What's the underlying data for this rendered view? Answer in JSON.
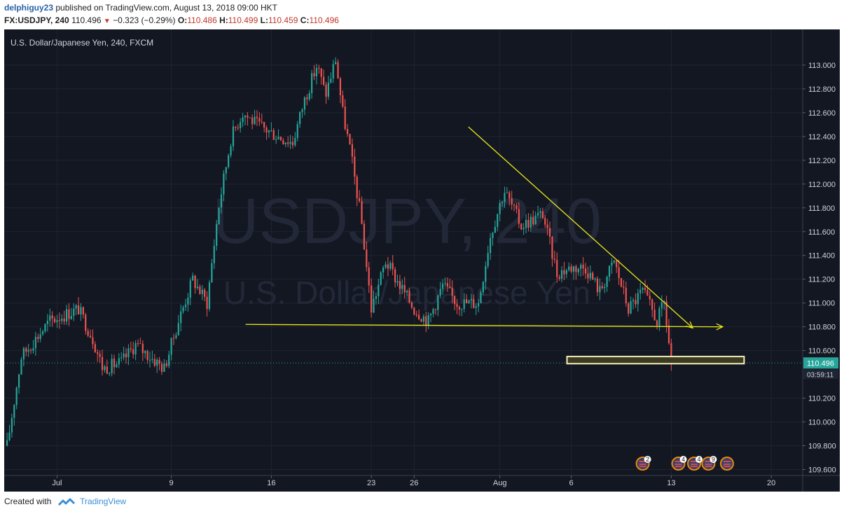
{
  "header": {
    "username": "delphiguy23",
    "published_text": " published on TradingView.com, August 13, 2018 09:00 HKT",
    "symbol": "FX:USDJPY, 240",
    "price": "110.496",
    "change_arrow": "▼",
    "change": "−0.323 (−0.29%)",
    "o_label": "O:",
    "o_value": "110.486",
    "h_label": "H:",
    "h_value": "110.499",
    "l_label": "L:",
    "l_value": "110.459",
    "c_label": "C:",
    "c_value": "110.496"
  },
  "footer": {
    "created_with": "Created with",
    "brand": "TradingView"
  },
  "chart_data": {
    "type": "candlestick",
    "title": "U.S. Dollar/Japanese Yen, 240, FXCM",
    "watermark_symbol": "USDJPY, 240",
    "watermark_name": "U.S. Dollar/Japanese Yen",
    "ylim": [
      109.55,
      113.3
    ],
    "y_ticks": [
      "113.000",
      "112.800",
      "112.600",
      "112.400",
      "112.200",
      "112.000",
      "111.800",
      "111.600",
      "111.400",
      "111.200",
      "111.000",
      "110.800",
      "110.600",
      "110.200",
      "110.000",
      "109.800",
      "109.600"
    ],
    "x_ticks": [
      {
        "label": "Jul",
        "day": 1
      },
      {
        "label": "9",
        "day": 9
      },
      {
        "label": "16",
        "day": 16
      },
      {
        "label": "23",
        "day": 23
      },
      {
        "label": "26",
        "day": 26
      },
      {
        "label": "Aug",
        "day": 32
      },
      {
        "label": "6",
        "day": 37
      },
      {
        "label": "13",
        "day": 44
      },
      {
        "label": "20",
        "day": 51
      }
    ],
    "x_range_days": [
      -2.7,
      53.2
    ],
    "last_price": "110.496",
    "last_price_value": 110.496,
    "countdown": "03:59:11",
    "colors": {
      "background": "#131722",
      "up": "#26a69a",
      "down": "#ef5350",
      "grid": "#1f2433",
      "trend": "#e8e81a",
      "axis_text": "#d1d4dc"
    },
    "keypoints": [
      {
        "day": -2.5,
        "price": 109.8
      },
      {
        "day": -1.5,
        "price": 110.55
      },
      {
        "day": 0.5,
        "price": 110.85
      },
      {
        "day": 1.5,
        "price": 110.9
      },
      {
        "day": 2.5,
        "price": 110.95
      },
      {
        "day": 3.5,
        "price": 110.7
      },
      {
        "day": 4.2,
        "price": 110.45
      },
      {
        "day": 5.5,
        "price": 110.5
      },
      {
        "day": 6.5,
        "price": 110.65
      },
      {
        "day": 7.5,
        "price": 110.55
      },
      {
        "day": 8.5,
        "price": 110.45
      },
      {
        "day": 9.5,
        "price": 110.85
      },
      {
        "day": 10.5,
        "price": 111.2
      },
      {
        "day": 11.5,
        "price": 111.0
      },
      {
        "day": 12.3,
        "price": 111.8
      },
      {
        "day": 13.2,
        "price": 112.4
      },
      {
        "day": 14.0,
        "price": 112.6
      },
      {
        "day": 15.0,
        "price": 112.5
      },
      {
        "day": 16.5,
        "price": 112.4
      },
      {
        "day": 17.5,
        "price": 112.35
      },
      {
        "day": 18.3,
        "price": 112.7
      },
      {
        "day": 19.2,
        "price": 113.0
      },
      {
        "day": 19.8,
        "price": 112.75
      },
      {
        "day": 20.5,
        "price": 113.05
      },
      {
        "day": 21.0,
        "price": 112.6
      },
      {
        "day": 21.5,
        "price": 112.3
      },
      {
        "day": 22.3,
        "price": 111.7
      },
      {
        "day": 23.0,
        "price": 110.95
      },
      {
        "day": 24.0,
        "price": 111.35
      },
      {
        "day": 25.0,
        "price": 111.15
      },
      {
        "day": 26.0,
        "price": 110.95
      },
      {
        "day": 27.0,
        "price": 110.85
      },
      {
        "day": 28.0,
        "price": 111.15
      },
      {
        "day": 29.0,
        "price": 111.0
      },
      {
        "day": 30.5,
        "price": 111.0
      },
      {
        "day": 31.3,
        "price": 111.55
      },
      {
        "day": 32.3,
        "price": 111.95
      },
      {
        "day": 33.5,
        "price": 111.65
      },
      {
        "day": 35.0,
        "price": 111.75
      },
      {
        "day": 36.0,
        "price": 111.25
      },
      {
        "day": 37.0,
        "price": 111.3
      },
      {
        "day": 38.0,
        "price": 111.3
      },
      {
        "day": 39.0,
        "price": 111.1
      },
      {
        "day": 40.0,
        "price": 111.35
      },
      {
        "day": 41.0,
        "price": 110.95
      },
      {
        "day": 42.0,
        "price": 111.1
      },
      {
        "day": 43.0,
        "price": 110.85
      },
      {
        "day": 43.5,
        "price": 111.0
      },
      {
        "day": 44.0,
        "price": 110.496
      }
    ],
    "trendlines": [
      {
        "name": "descending-resistance",
        "from": {
          "day": 29.8,
          "price": 112.48
        },
        "to": {
          "day": 45.5,
          "price": 110.79
        },
        "arrow": true
      },
      {
        "name": "horizontal-support",
        "from": {
          "day": 14.2,
          "price": 110.82
        },
        "to": {
          "day": 47.6,
          "price": 110.8
        },
        "arrow": true
      }
    ],
    "highlight_zone": {
      "from_day": 36.7,
      "to_day": 49.1,
      "price_low": 110.49,
      "price_high": 110.55
    },
    "event_markers": [
      {
        "day": 42.0,
        "count": "2"
      },
      {
        "day": 44.5,
        "count": "4"
      },
      {
        "day": 45.6,
        "count": "4"
      },
      {
        "day": 46.6,
        "count": "9"
      },
      {
        "day": 47.9,
        "count": ""
      }
    ]
  }
}
